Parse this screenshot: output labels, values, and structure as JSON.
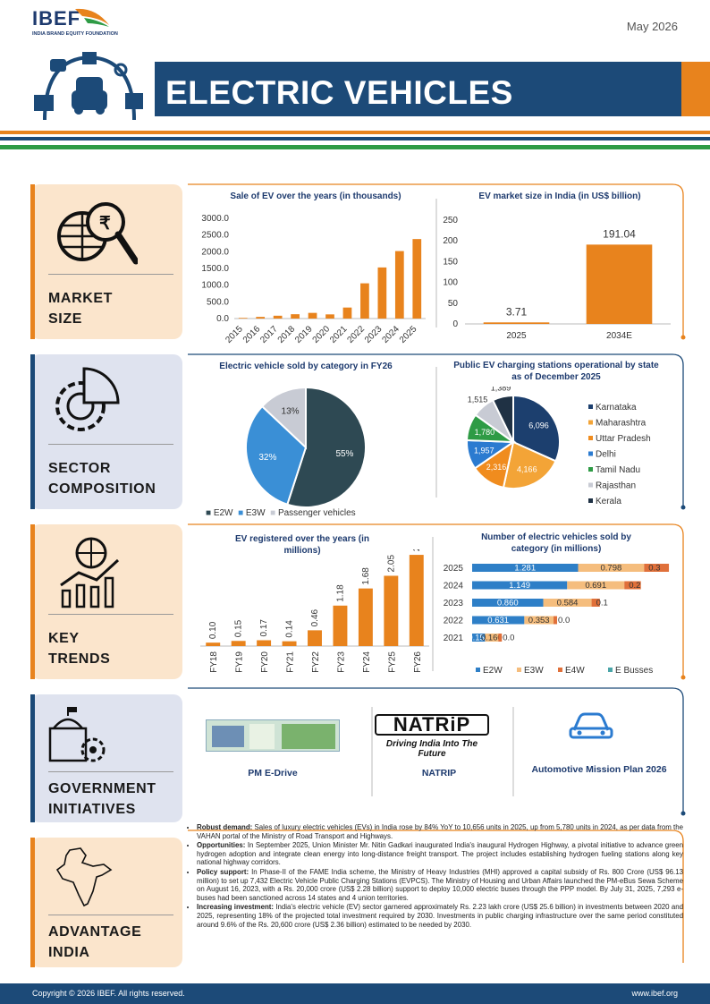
{
  "header": {
    "brand": "IBEF",
    "brand_sub": "INDIA BRAND EQUITY FOUNDATION",
    "date": "May 2026",
    "title": "ELECTRIC VEHICLES"
  },
  "sections": {
    "market": "MARKET SIZE",
    "sector": "SECTOR COMPOSITION",
    "trends": "KEY TRENDS",
    "gov": "GOVERNMENT INITIATIVES",
    "advantage": "ADVANTAGE INDIA"
  },
  "sections_lines": {
    "market": [
      "MARKET",
      "SIZE"
    ],
    "sector": [
      "SECTOR",
      "COMPOSITION"
    ],
    "trends": [
      "KEY",
      "TRENDS"
    ],
    "gov": [
      "GOVERNMENT",
      "INITIATIVES"
    ],
    "advantage": [
      "ADVANTAGE",
      "INDIA"
    ]
  },
  "colors": {
    "navy": "#1c4a78",
    "orange": "#e8831d",
    "green": "#2e9b45",
    "dark": "#2e4953",
    "blue": "#3a8fd6",
    "grey": "#c8cbd4"
  },
  "chart_data": [
    {
      "id": "ev_sales",
      "type": "bar",
      "title": "Sale of EV over the years (in thousands)",
      "categories": [
        "2015",
        "2016",
        "2017",
        "2018",
        "2019",
        "2020",
        "2021",
        "2022",
        "2023",
        "2024",
        "2025"
      ],
      "values": [
        20,
        50,
        85,
        130,
        170,
        125,
        330,
        1055,
        1530,
        2020,
        2380
      ],
      "ylim": [
        0,
        3000
      ],
      "yticks": [
        "0.0",
        "500.0",
        "1000.0",
        "1500.0",
        "2000.0",
        "2500.0",
        "3000.0"
      ]
    },
    {
      "id": "ev_market",
      "type": "bar",
      "title": "EV market size in India (in US$ billion)",
      "categories": [
        "2025",
        "2034E"
      ],
      "values": [
        3.71,
        191.04
      ],
      "data_labels": [
        "3.71",
        "191.04"
      ],
      "ylim": [
        0,
        250
      ],
      "yticks": [
        "0",
        "50",
        "100",
        "150",
        "200",
        "250"
      ]
    },
    {
      "id": "ev_category",
      "type": "pie",
      "title": "Electric vehicle sold by category in FY26",
      "labels": [
        "E2W",
        "E3W",
        "Passenger vehicles"
      ],
      "values": [
        55,
        32,
        13
      ],
      "data_labels": [
        "55%",
        "32%",
        "13%"
      ]
    },
    {
      "id": "charging",
      "type": "pie",
      "title": "Public EV charging stations operational by state as of December 2025",
      "labels": [
        "Karnataka",
        "Maharashtra",
        "Uttar Pradesh",
        "Delhi",
        "Tamil Nadu",
        "Rajasthan",
        "Kerala"
      ],
      "values": [
        6096,
        4166,
        2316,
        1957,
        1780,
        1515,
        1389
      ],
      "data_labels": [
        "6,096",
        "4,166",
        "2,316",
        "1,957",
        "1,780",
        "1,515",
        "1,389"
      ]
    },
    {
      "id": "ev_registered",
      "type": "bar",
      "title": "EV registered over the years (in millions)",
      "categories": [
        "FY18",
        "FY19",
        "FY20",
        "FY21",
        "FY22",
        "FY23",
        "FY24",
        "FY25",
        "FY26"
      ],
      "values": [
        0.1,
        0.15,
        0.17,
        0.14,
        0.46,
        1.18,
        1.68,
        2.05,
        2.66
      ],
      "data_labels": [
        "0.10",
        "0.15",
        "0.17",
        "0.14",
        "0.46",
        "1.18",
        "1.68",
        "2.05",
        "2.66"
      ]
    },
    {
      "id": "ev_sold_cat",
      "type": "bar",
      "stacked": true,
      "horizontal": true,
      "title": "Number of electric vehicles sold by category (in millions)",
      "categories": [
        "2025",
        "2024",
        "2023",
        "2022",
        "2021"
      ],
      "series": [
        {
          "name": "E2W",
          "values": [
            1.281,
            1.149,
            0.86,
            0.631,
            0.156
          ],
          "labels": [
            "1.281",
            "1.149",
            "0.860",
            "0.631",
            "0.156"
          ]
        },
        {
          "name": "E3W",
          "values": [
            0.798,
            0.691,
            0.584,
            0.353,
            0.16
          ],
          "labels": [
            "0.798",
            "0.691",
            "0.584",
            "0.353",
            "0.160"
          ]
        },
        {
          "name": "E4W",
          "values": [
            0.3,
            0.2,
            0.1,
            0.0,
            0.0
          ],
          "labels": [
            "0.3",
            "0.2",
            "0.1",
            "0.0",
            "0.0"
          ]
        },
        {
          "name": "E Busses",
          "values": [
            0,
            0,
            0,
            0,
            0
          ]
        }
      ]
    }
  ],
  "gov": {
    "items": [
      "PM E-Drive",
      "NATRIP",
      "Automotive Mission Plan 2026"
    ],
    "natrip_logo": "NATRiP",
    "natrip_tag": "Driving India Into The Future"
  },
  "bullets": [
    {
      "head": "Robust demand:",
      "text": " Sales of luxury electric vehicles (EVs) in India rose by 84% YoY to 10,656 units in 2025, up from 5,780 units in 2024, as per data from the VAHAN portal of the Ministry of Road Transport and Highways."
    },
    {
      "head": "Opportunities:",
      "text": " In September 2025, Union Minister Mr. Nitin Gadkari inaugurated India's inaugural Hydrogen Highway, a pivotal initiative to advance green hydrogen adoption and integrate clean energy into long-distance freight transport. The project includes establishing hydrogen fueling stations along key national highway corridors."
    },
    {
      "head": "Policy support:",
      "text": " In Phase-II of the FAME India scheme, the Ministry of Heavy Industries (MHI) approved a capital subsidy of Rs. 800 Crore (US$ 96.13 million) to set up 7,432 Electric Vehicle Public Charging Stations (EVPCS). The Ministry of Housing and Urban Affairs launched the PM-eBus Sewa Scheme on August 16, 2023, with a Rs. 20,000 crore (US$ 2.28 billion) support to deploy 10,000 electric buses through the PPP model. By July 31, 2025, 7,293 e-buses had been sanctioned across 14 states and 4 union territories."
    },
    {
      "head": "Increasing investment:",
      "text": " India's electric vehicle (EV) sector garnered approximately Rs. 2.23 lakh crore (US$ 25.6 billion) in investments between 2020 and 2025, representing 18% of the projected total investment required by 2030. Investments in public charging infrastructure over the same period constituted around 9.6% of the Rs. 20,600 crore (US$ 2.36 billion) estimated to be needed by 2030."
    }
  ],
  "footer": {
    "copyright": "Copyright © 2026 IBEF. All rights reserved.",
    "site": "www.ibef.org"
  }
}
